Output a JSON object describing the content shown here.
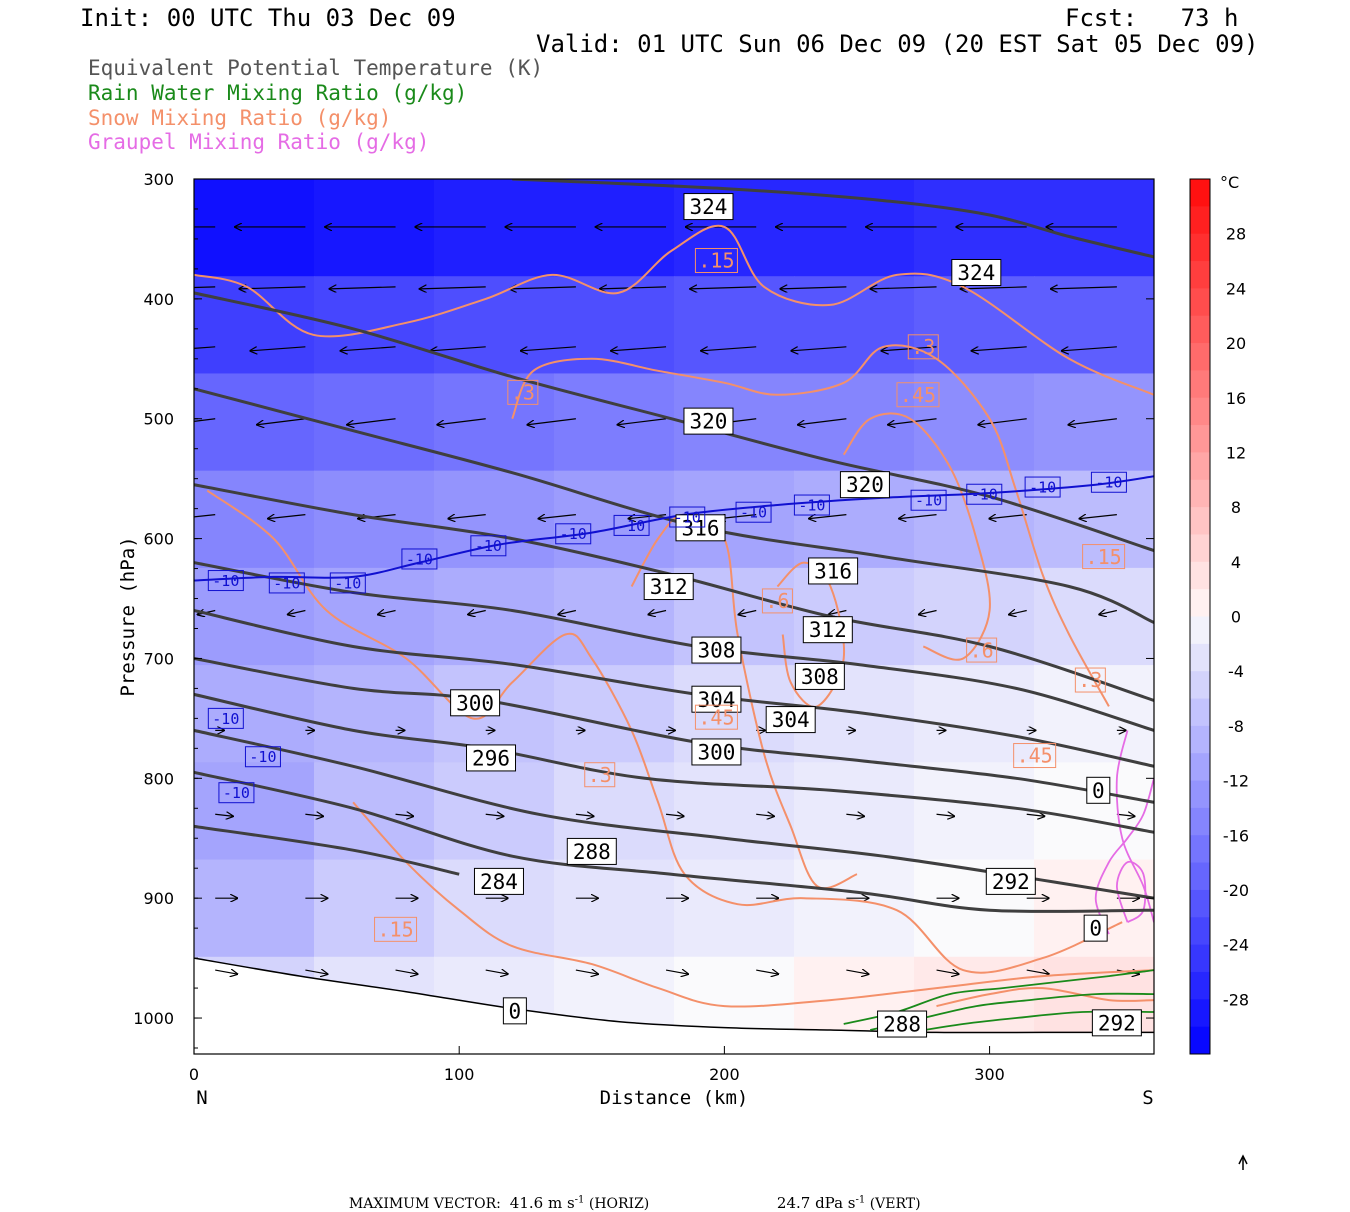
{
  "header": {
    "init": "Init: 00 UTC Thu 03 Dec 09",
    "fcst": "Fcst:   73 h",
    "valid": "Valid: 01 UTC Sun 06 Dec 09 (20 EST Sat 05 Dec 09)"
  },
  "legend": [
    {
      "label": "Equivalent Potential Temperature (K)",
      "color": "#555555"
    },
    {
      "label": "Rain Water Mixing Ratio (g/kg)",
      "color": "#1a8a1a"
    },
    {
      "label": "Snow Mixing Ratio (g/kg)",
      "color": "#f4906a"
    },
    {
      "label": "Graupel Mixing Ratio (g/kg)",
      "color": "#e56ce5"
    }
  ],
  "footer": {
    "max_vector_label": "MAXIMUM VECTOR:",
    "horiz": "41.6 m s",
    "horiz_sup": "-1",
    "horiz_tag": "(HORIZ)",
    "vert": "24.7 dPa s",
    "vert_sup": "-1",
    "vert_tag": "(VERT)"
  },
  "chart_data": {
    "type": "cross-section",
    "xlabel": "Distance (km)",
    "ylabel": "Pressure (hPa)",
    "xlim": [
      0,
      362
    ],
    "ylim": [
      1030,
      300
    ],
    "x_ticks": [
      0,
      100,
      200,
      300
    ],
    "y_ticks": [
      300,
      400,
      500,
      600,
      700,
      800,
      900,
      1000
    ],
    "left_end_label": "N",
    "right_end_label": "S",
    "colorbar": {
      "unit": "°C",
      "ticks": [
        28,
        24,
        20,
        16,
        12,
        8,
        4,
        0,
        -4,
        -8,
        -12,
        -16,
        -20,
        -24,
        -28
      ],
      "range": [
        -32,
        32
      ]
    },
    "theta_e_contours": [
      {
        "value": 324,
        "points": [
          [
            120,
            300
          ],
          [
            200,
            308
          ],
          [
            260,
            318
          ],
          [
            300,
            330
          ],
          [
            330,
            348
          ],
          [
            362,
            365
          ]
        ]
      },
      {
        "value": 320,
        "points": [
          [
            0,
            395
          ],
          [
            60,
            425
          ],
          [
            120,
            465
          ],
          [
            180,
            500
          ],
          [
            240,
            535
          ],
          [
            300,
            565
          ],
          [
            362,
            610
          ]
        ]
      },
      {
        "value": 316,
        "points": [
          [
            0,
            475
          ],
          [
            60,
            510
          ],
          [
            120,
            545
          ],
          [
            190,
            590
          ],
          [
            260,
            615
          ],
          [
            330,
            640
          ],
          [
            362,
            670
          ]
        ]
      },
      {
        "value": 312,
        "points": [
          [
            0,
            555
          ],
          [
            60,
            580
          ],
          [
            120,
            600
          ],
          [
            180,
            630
          ],
          [
            240,
            665
          ],
          [
            300,
            690
          ],
          [
            362,
            735
          ]
        ]
      },
      {
        "value": 308,
        "points": [
          [
            0,
            620
          ],
          [
            60,
            645
          ],
          [
            120,
            660
          ],
          [
            190,
            690
          ],
          [
            250,
            705
          ],
          [
            310,
            725
          ],
          [
            362,
            760
          ]
        ]
      },
      {
        "value": 304,
        "points": [
          [
            0,
            660
          ],
          [
            60,
            690
          ],
          [
            120,
            705
          ],
          [
            190,
            730
          ],
          [
            250,
            745
          ],
          [
            310,
            765
          ],
          [
            362,
            790
          ]
        ]
      },
      {
        "value": 300,
        "points": [
          [
            0,
            700
          ],
          [
            60,
            725
          ],
          [
            110,
            735
          ],
          [
            190,
            770
          ],
          [
            250,
            785
          ],
          [
            310,
            800
          ],
          [
            362,
            820
          ]
        ]
      },
      {
        "value": 296,
        "points": [
          [
            0,
            730
          ],
          [
            60,
            760
          ],
          [
            110,
            775
          ],
          [
            170,
            800
          ],
          [
            240,
            810
          ],
          [
            310,
            825
          ],
          [
            362,
            845
          ]
        ]
      },
      {
        "value": 292,
        "points": [
          [
            0,
            760
          ],
          [
            60,
            790
          ],
          [
            130,
            830
          ],
          [
            200,
            850
          ],
          [
            260,
            865
          ],
          [
            320,
            885
          ],
          [
            362,
            900
          ]
        ]
      },
      {
        "value": 288,
        "points": [
          [
            0,
            795
          ],
          [
            60,
            825
          ],
          [
            120,
            865
          ],
          [
            180,
            880
          ],
          [
            250,
            895
          ],
          [
            300,
            910
          ],
          [
            362,
            910
          ]
        ]
      },
      {
        "value": 284,
        "points": [
          [
            0,
            840
          ],
          [
            60,
            860
          ],
          [
            100,
            880
          ]
        ]
      }
    ],
    "theta_e_labels": [
      {
        "text": "324",
        "x": 194,
        "p": 323
      },
      {
        "text": "324",
        "x": 295,
        "p": 378
      },
      {
        "text": "320",
        "x": 194,
        "p": 502
      },
      {
        "text": "320",
        "x": 253,
        "p": 555
      },
      {
        "text": "316",
        "x": 191,
        "p": 591
      },
      {
        "text": "316",
        "x": 241,
        "p": 627
      },
      {
        "text": "312",
        "x": 179,
        "p": 640
      },
      {
        "text": "312",
        "x": 239,
        "p": 676
      },
      {
        "text": "308",
        "x": 197,
        "p": 693
      },
      {
        "text": "308",
        "x": 236,
        "p": 715
      },
      {
        "text": "304",
        "x": 197,
        "p": 734
      },
      {
        "text": "304",
        "x": 225,
        "p": 751
      },
      {
        "text": "300",
        "x": 106,
        "p": 737
      },
      {
        "text": "300",
        "x": 197,
        "p": 778
      },
      {
        "text": "296",
        "x": 112,
        "p": 783
      },
      {
        "text": "288",
        "x": 150,
        "p": 861
      },
      {
        "text": "284",
        "x": 115,
        "p": 886
      },
      {
        "text": "292",
        "x": 308,
        "p": 886
      },
      {
        "text": "288",
        "x": 267,
        "p": 1005
      },
      {
        "text": "292",
        "x": 348,
        "p": 1004
      },
      {
        "text": "0",
        "x": 121,
        "p": 994
      },
      {
        "text": "0",
        "x": 341,
        "p": 810
      },
      {
        "text": "0",
        "x": 340,
        "p": 925
      }
    ],
    "isotherm_minus10": {
      "value": "-10",
      "points": [
        [
          0,
          635
        ],
        [
          30,
          632
        ],
        [
          60,
          632
        ],
        [
          85,
          620
        ],
        [
          115,
          605
        ],
        [
          150,
          595
        ],
        [
          185,
          580
        ],
        [
          220,
          572
        ],
        [
          260,
          566
        ],
        [
          300,
          562
        ],
        [
          340,
          555
        ],
        [
          362,
          548
        ]
      ]
    },
    "isotherm_labels": [
      {
        "text": "-10",
        "x": 12,
        "p": 635
      },
      {
        "text": "-10",
        "x": 35,
        "p": 637
      },
      {
        "text": "-10",
        "x": 58,
        "p": 637
      },
      {
        "text": "-10",
        "x": 85,
        "p": 617
      },
      {
        "text": "-10",
        "x": 111,
        "p": 606
      },
      {
        "text": "-10",
        "x": 143,
        "p": 596
      },
      {
        "text": "-10",
        "x": 165,
        "p": 589
      },
      {
        "text": "-10",
        "x": 186,
        "p": 582
      },
      {
        "text": "-10",
        "x": 211,
        "p": 578
      },
      {
        "text": "-10",
        "x": 233,
        "p": 572
      },
      {
        "text": "-10",
        "x": 277,
        "p": 568
      },
      {
        "text": "-10",
        "x": 298,
        "p": 563
      },
      {
        "text": "-10",
        "x": 320,
        "p": 557
      },
      {
        "text": "-10",
        "x": 345,
        "p": 553
      },
      {
        "text": "-10",
        "x": 12,
        "p": 750
      },
      {
        "text": "-10",
        "x": 26,
        "p": 782
      },
      {
        "text": "-10",
        "x": 16,
        "p": 812
      }
    ],
    "snow_labels": [
      {
        "text": ".15",
        "x": 197,
        "p": 368
      },
      {
        "text": ".3",
        "x": 275,
        "p": 440
      },
      {
        "text": ".3",
        "x": 124,
        "p": 478
      },
      {
        "text": ".45",
        "x": 273,
        "p": 480
      },
      {
        "text": ".15",
        "x": 343,
        "p": 615
      },
      {
        "text": ".6",
        "x": 220,
        "p": 652
      },
      {
        "text": ".6",
        "x": 297,
        "p": 693
      },
      {
        "text": ".3",
        "x": 338,
        "p": 718
      },
      {
        "text": ".45",
        "x": 197,
        "p": 749
      },
      {
        "text": ".45",
        "x": 317,
        "p": 781
      },
      {
        "text": ".3",
        "x": 153,
        "p": 797
      },
      {
        "text": ".15",
        "x": 76,
        "p": 926
      }
    ],
    "temperature_field_c": [
      [
        -30,
        -29,
        -28,
        -28,
        -27,
        -27,
        -26,
        -26
      ],
      [
        -24,
        -23,
        -22,
        -22,
        -21,
        -21,
        -20,
        -20
      ],
      [
        -19,
        -18,
        -17,
        -16,
        -15,
        -15,
        -14,
        -13
      ],
      [
        -15,
        -14,
        -13,
        -12,
        -11,
        -10,
        -9,
        -8
      ],
      [
        -12,
        -11,
        -10,
        -9,
        -7,
        -6,
        -5,
        -4
      ],
      [
        -10,
        -9,
        -7,
        -6,
        -4,
        -3,
        -2,
        -1
      ],
      [
        -11,
        -8,
        -6,
        -4,
        -3,
        -2,
        -1,
        0
      ],
      [
        -9,
        -6,
        -4,
        -3,
        -2,
        -1,
        0,
        1
      ],
      [
        -5,
        -3,
        -2,
        -1,
        0,
        1,
        2,
        3
      ]
    ]
  }
}
